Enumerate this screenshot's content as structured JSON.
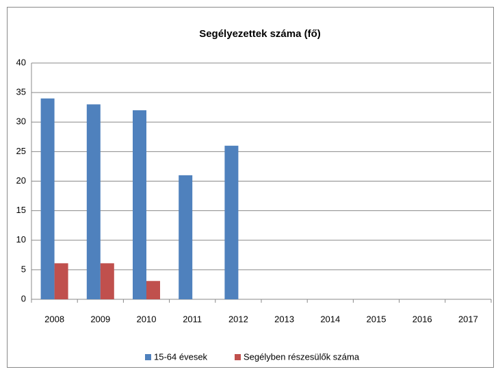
{
  "chart_data": {
    "type": "bar",
    "title": "Segélyezettek száma (fő)",
    "categories": [
      "2008",
      "2009",
      "2010",
      "2011",
      "2012",
      "2013",
      "2014",
      "2015",
      "2016",
      "2017"
    ],
    "series": [
      {
        "name": "15-64 évesek",
        "color": "#4f81bd",
        "values": [
          34,
          33,
          32,
          21,
          26,
          null,
          null,
          null,
          null,
          null
        ]
      },
      {
        "name": "Segélyben részesülők száma",
        "color": "#c0504d",
        "values": [
          6.1,
          6.1,
          3.1,
          null,
          null,
          null,
          null,
          null,
          null,
          null
        ]
      }
    ],
    "ylim": [
      0,
      40
    ],
    "yticks": [
      0,
      5,
      10,
      15,
      20,
      25,
      30,
      35,
      40
    ],
    "grid": true,
    "legend": "bottom"
  }
}
